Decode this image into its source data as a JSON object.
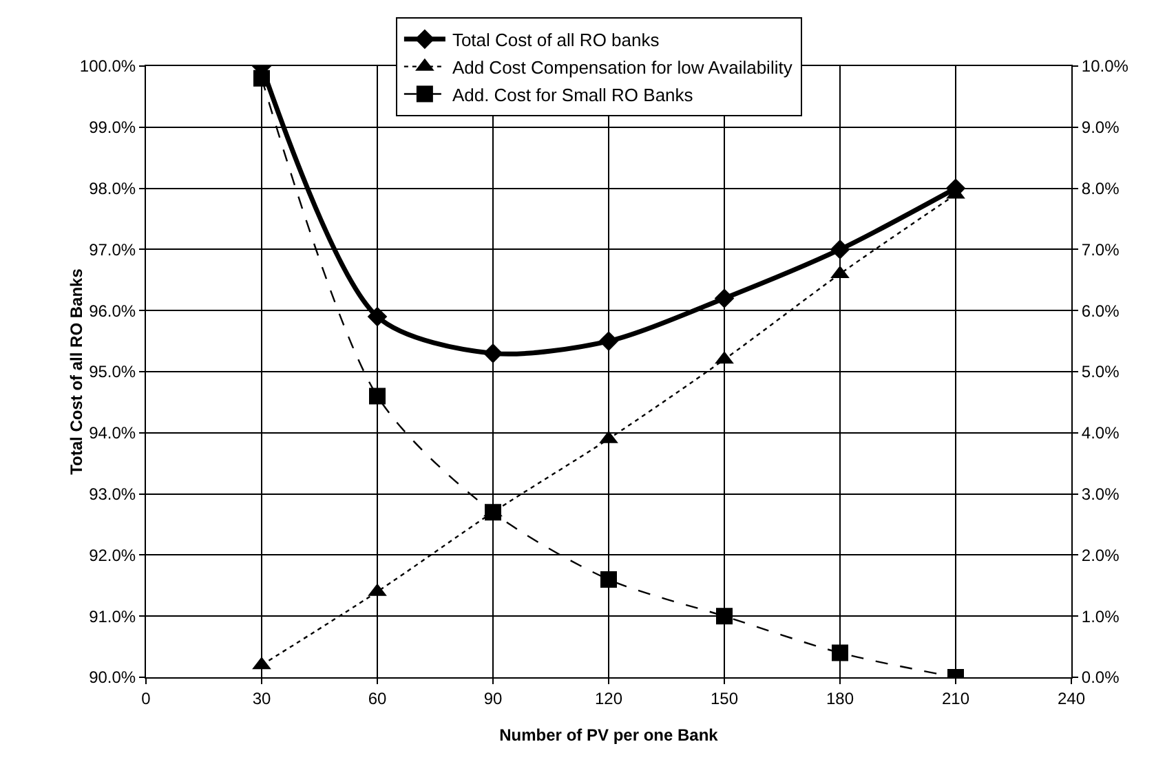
{
  "chart_data": {
    "type": "line",
    "xlabel": "Number of PV per one Bank",
    "ylabel": "Total Cost of all RO Banks",
    "x": [
      30,
      60,
      90,
      120,
      150,
      180,
      210
    ],
    "xlim": [
      0,
      240
    ],
    "xticks": [
      0,
      30,
      60,
      90,
      120,
      150,
      180,
      210,
      240
    ],
    "ylim": [
      90,
      100
    ],
    "yticks": [
      {
        "value": 90,
        "label": "90.0%"
      },
      {
        "value": 91,
        "label": "91.0%"
      },
      {
        "value": 92,
        "label": "92.0%"
      },
      {
        "value": 93,
        "label": "93.0%"
      },
      {
        "value": 94,
        "label": "94.0%"
      },
      {
        "value": 95,
        "label": "95.0%"
      },
      {
        "value": 96,
        "label": "96.0%"
      },
      {
        "value": 97,
        "label": "97.0%"
      },
      {
        "value": 98,
        "label": "98.0%"
      },
      {
        "value": 99,
        "label": "99.0%"
      },
      {
        "value": 100,
        "label": "100.0%"
      }
    ],
    "y2lim": [
      0,
      10
    ],
    "y2ticks": [
      {
        "value": 0,
        "label": "0.0%"
      },
      {
        "value": 1,
        "label": "1.0%"
      },
      {
        "value": 2,
        "label": "2.0%"
      },
      {
        "value": 3,
        "label": "3.0%"
      },
      {
        "value": 4,
        "label": "4.0%"
      },
      {
        "value": 5,
        "label": "5.0%"
      },
      {
        "value": 6,
        "label": "6.0%"
      },
      {
        "value": 7,
        "label": "7.0%"
      },
      {
        "value": 8,
        "label": "8.0%"
      },
      {
        "value": 9,
        "label": "9.0%"
      },
      {
        "value": 10,
        "label": "10.0%"
      }
    ],
    "grid": true,
    "legend": "top",
    "series": [
      {
        "name": "Total Cost of all RO banks",
        "color": "#000000",
        "marker": "diamond",
        "line_style": "solid",
        "values": [
          100.0,
          95.9,
          95.3,
          95.5,
          96.2,
          97.0,
          98.0
        ]
      },
      {
        "name": "Add Cost Compensation for low Availability",
        "color": "#000000",
        "marker": "triangle",
        "line_style": "dotted",
        "axis": "y2",
        "values": [
          0.2,
          1.4,
          2.7,
          3.9,
          5.2,
          6.6,
          7.9
        ]
      },
      {
        "name": "Add. Cost for Small RO Banks",
        "color": "#000000",
        "marker": "square",
        "line_style": "dashed",
        "axis": "y2",
        "values": [
          9.8,
          4.6,
          2.7,
          1.6,
          1.0,
          0.4,
          0.0
        ]
      }
    ]
  }
}
